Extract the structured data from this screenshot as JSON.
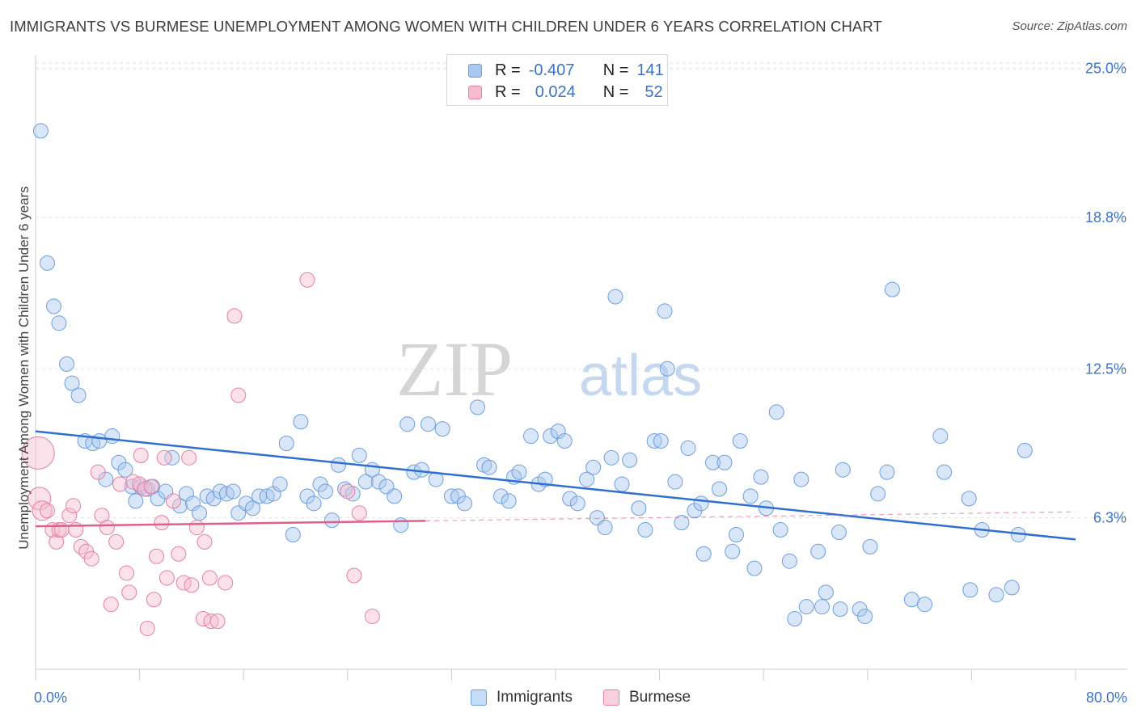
{
  "title": "IMMIGRANTS VS BURMESE UNEMPLOYMENT AMONG WOMEN WITH CHILDREN UNDER 6 YEARS CORRELATION CHART",
  "source": "Source: ZipAtlas.com",
  "watermark": {
    "zip": "ZIP",
    "atlas": "atlas"
  },
  "legend": {
    "rows": [
      {
        "r_label": "R =",
        "r_value": "-0.407",
        "n_label": "N =",
        "n_value": "141",
        "color": "#a9c8f0",
        "border": "#6c9ee0"
      },
      {
        "r_label": "R =",
        "r_value": "0.024",
        "n_label": "N =",
        "n_value": "52",
        "color": "#f7bcd0",
        "border": "#e57fa3"
      }
    ],
    "bottom": [
      {
        "label": "Immigrants",
        "color": "#c5dbf6",
        "border": "#6c9ee0"
      },
      {
        "label": "Burmese",
        "color": "#fad0de",
        "border": "#e57fa3"
      }
    ]
  },
  "chart_data": {
    "type": "scatter",
    "title": "IMMIGRANTS VS BURMESE UNEMPLOYMENT AMONG WOMEN WITH CHILDREN UNDER 6 YEARS CORRELATION CHART",
    "xlabel": "",
    "ylabel": "Unemployment Among Women with Children Under 6 years",
    "xlim": [
      0,
      80
    ],
    "ylim": [
      0,
      26.5
    ],
    "x_tick_labels": [
      "0.0%",
      "80.0%"
    ],
    "y_ticks": [
      6.3,
      12.5,
      18.8,
      25.0
    ],
    "y_tick_labels": [
      "6.3%",
      "12.5%",
      "18.8%",
      "25.0%"
    ],
    "grid": true,
    "series": [
      {
        "name": "Immigrants",
        "color": "#6c9ee0",
        "fill": "rgba(169,200,240,0.45)",
        "trend": {
          "x": [
            0,
            80
          ],
          "y": [
            9.9,
            5.4
          ],
          "color": "#2f6fd0",
          "solid_to": 80
        },
        "points": [
          [
            0.4,
            22.4
          ],
          [
            0.9,
            16.9
          ],
          [
            1.4,
            15.1
          ],
          [
            1.8,
            14.4
          ],
          [
            2.4,
            12.7
          ],
          [
            2.8,
            11.9
          ],
          [
            3.3,
            11.4
          ],
          [
            3.8,
            9.5
          ],
          [
            4.4,
            9.4
          ],
          [
            4.9,
            9.5
          ],
          [
            5.4,
            7.9
          ],
          [
            5.9,
            9.7
          ],
          [
            6.4,
            8.6
          ],
          [
            6.9,
            8.3
          ],
          [
            7.4,
            7.6
          ],
          [
            7.7,
            7.0
          ],
          [
            8.1,
            7.6
          ],
          [
            8.6,
            7.5
          ],
          [
            9.0,
            7.6
          ],
          [
            9.4,
            7.1
          ],
          [
            10.0,
            7.4
          ],
          [
            10.5,
            8.8
          ],
          [
            11.1,
            6.8
          ],
          [
            11.6,
            7.3
          ],
          [
            12.1,
            6.9
          ],
          [
            12.6,
            6.5
          ],
          [
            13.2,
            7.2
          ],
          [
            13.7,
            7.1
          ],
          [
            14.2,
            7.4
          ],
          [
            14.7,
            7.3
          ],
          [
            15.2,
            7.4
          ],
          [
            15.6,
            6.5
          ],
          [
            16.2,
            6.9
          ],
          [
            16.7,
            6.7
          ],
          [
            17.2,
            7.2
          ],
          [
            17.8,
            7.2
          ],
          [
            18.3,
            7.3
          ],
          [
            18.8,
            7.7
          ],
          [
            19.3,
            9.4
          ],
          [
            19.8,
            5.6
          ],
          [
            20.4,
            10.3
          ],
          [
            20.9,
            7.2
          ],
          [
            21.4,
            6.9
          ],
          [
            21.9,
            7.7
          ],
          [
            22.3,
            7.4
          ],
          [
            22.8,
            6.2
          ],
          [
            23.3,
            8.5
          ],
          [
            23.8,
            7.5
          ],
          [
            24.4,
            7.3
          ],
          [
            24.9,
            8.9
          ],
          [
            25.4,
            7.8
          ],
          [
            25.9,
            8.3
          ],
          [
            26.4,
            7.8
          ],
          [
            27.0,
            7.6
          ],
          [
            27.6,
            7.2
          ],
          [
            28.1,
            6.0
          ],
          [
            28.6,
            10.2
          ],
          [
            29.1,
            8.2
          ],
          [
            29.7,
            8.3
          ],
          [
            30.2,
            10.2
          ],
          [
            30.8,
            7.9
          ],
          [
            31.3,
            10.0
          ],
          [
            32.0,
            7.2
          ],
          [
            32.5,
            7.2
          ],
          [
            33.0,
            6.9
          ],
          [
            34.0,
            10.9
          ],
          [
            34.5,
            8.5
          ],
          [
            34.9,
            8.4
          ],
          [
            35.8,
            7.2
          ],
          [
            36.4,
            7.0
          ],
          [
            36.8,
            8.0
          ],
          [
            37.2,
            8.2
          ],
          [
            38.1,
            9.7
          ],
          [
            38.7,
            7.7
          ],
          [
            39.2,
            7.9
          ],
          [
            39.6,
            9.7
          ],
          [
            40.2,
            9.9
          ],
          [
            40.7,
            9.5
          ],
          [
            41.1,
            7.1
          ],
          [
            41.7,
            6.9
          ],
          [
            42.4,
            7.9
          ],
          [
            42.9,
            8.4
          ],
          [
            43.2,
            6.3
          ],
          [
            43.8,
            5.9
          ],
          [
            44.3,
            8.8
          ],
          [
            44.6,
            15.5
          ],
          [
            45.1,
            7.7
          ],
          [
            45.7,
            8.7
          ],
          [
            46.4,
            6.7
          ],
          [
            46.9,
            5.8
          ],
          [
            47.6,
            9.5
          ],
          [
            48.1,
            9.5
          ],
          [
            48.4,
            14.9
          ],
          [
            48.6,
            12.5
          ],
          [
            49.2,
            7.8
          ],
          [
            49.7,
            6.1
          ],
          [
            50.2,
            9.2
          ],
          [
            50.7,
            6.6
          ],
          [
            51.2,
            6.9
          ],
          [
            51.4,
            4.8
          ],
          [
            52.1,
            8.6
          ],
          [
            52.6,
            7.5
          ],
          [
            53.0,
            8.6
          ],
          [
            53.6,
            4.9
          ],
          [
            53.9,
            5.6
          ],
          [
            54.2,
            9.5
          ],
          [
            55.0,
            7.2
          ],
          [
            55.3,
            4.2
          ],
          [
            55.8,
            8.0
          ],
          [
            56.2,
            6.7
          ],
          [
            57.0,
            10.7
          ],
          [
            57.3,
            5.8
          ],
          [
            58.0,
            4.5
          ],
          [
            58.4,
            2.1
          ],
          [
            58.9,
            7.9
          ],
          [
            59.3,
            2.6
          ],
          [
            60.2,
            4.9
          ],
          [
            60.5,
            2.6
          ],
          [
            60.8,
            3.2
          ],
          [
            61.8,
            5.7
          ],
          [
            61.9,
            2.5
          ],
          [
            62.1,
            8.3
          ],
          [
            63.4,
            2.5
          ],
          [
            63.8,
            2.2
          ],
          [
            64.2,
            5.1
          ],
          [
            64.8,
            7.3
          ],
          [
            65.5,
            8.2
          ],
          [
            65.9,
            15.8
          ],
          [
            67.4,
            2.9
          ],
          [
            68.4,
            2.7
          ],
          [
            69.6,
            9.7
          ],
          [
            69.9,
            8.2
          ],
          [
            71.8,
            7.1
          ],
          [
            71.9,
            3.3
          ],
          [
            72.8,
            5.8
          ],
          [
            73.9,
            3.1
          ],
          [
            75.1,
            3.4
          ],
          [
            75.6,
            5.6
          ],
          [
            76.1,
            9.1
          ]
        ]
      },
      {
        "name": "Burmese",
        "color": "#e57fa3",
        "fill": "rgba(247,188,208,0.45)",
        "trend": {
          "x": [
            0,
            80
          ],
          "y": [
            5.95,
            6.55
          ],
          "color": "#e0608d",
          "solid_to": 30
        },
        "points": [
          [
            0.2,
            9.0
          ],
          [
            0.3,
            7.1
          ],
          [
            0.5,
            6.6
          ],
          [
            0.9,
            6.6
          ],
          [
            1.3,
            5.8
          ],
          [
            1.6,
            5.3
          ],
          [
            1.8,
            5.8
          ],
          [
            2.0,
            5.8
          ],
          [
            2.6,
            6.4
          ],
          [
            2.9,
            6.8
          ],
          [
            3.1,
            5.8
          ],
          [
            3.5,
            5.1
          ],
          [
            3.9,
            4.9
          ],
          [
            4.3,
            4.6
          ],
          [
            4.8,
            8.2
          ],
          [
            5.1,
            6.4
          ],
          [
            5.5,
            5.9
          ],
          [
            5.8,
            2.7
          ],
          [
            6.2,
            5.3
          ],
          [
            6.5,
            7.7
          ],
          [
            7.0,
            4.0
          ],
          [
            7.2,
            3.2
          ],
          [
            7.5,
            7.8
          ],
          [
            8.0,
            7.7
          ],
          [
            8.1,
            8.9
          ],
          [
            8.4,
            7.5
          ],
          [
            8.6,
            1.7
          ],
          [
            8.9,
            7.6
          ],
          [
            9.1,
            2.9
          ],
          [
            9.3,
            4.7
          ],
          [
            9.7,
            6.1
          ],
          [
            9.9,
            8.8
          ],
          [
            10.1,
            3.8
          ],
          [
            10.6,
            7.0
          ],
          [
            11.0,
            4.8
          ],
          [
            11.4,
            3.6
          ],
          [
            11.8,
            8.8
          ],
          [
            12.0,
            3.5
          ],
          [
            12.4,
            5.9
          ],
          [
            12.9,
            2.1
          ],
          [
            13.0,
            5.3
          ],
          [
            13.4,
            3.8
          ],
          [
            13.5,
            2.0
          ],
          [
            14.0,
            2.0
          ],
          [
            14.6,
            3.6
          ],
          [
            15.3,
            14.7
          ],
          [
            15.6,
            11.4
          ],
          [
            20.9,
            16.2
          ],
          [
            24.0,
            7.4
          ],
          [
            24.5,
            3.9
          ],
          [
            24.9,
            6.5
          ],
          [
            25.9,
            2.2
          ]
        ]
      }
    ]
  }
}
